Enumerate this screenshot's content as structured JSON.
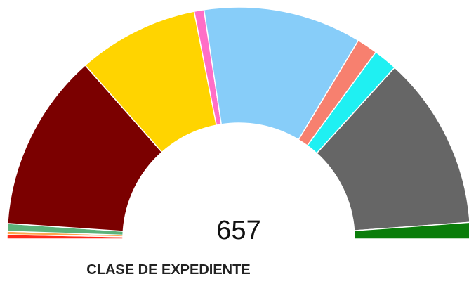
{
  "chart_data": {
    "type": "semi-donut",
    "title": "CLASE DE EXPEDIENTE",
    "total": 657,
    "values": [
      4,
      3,
      7,
      163,
      111,
      9,
      145,
      19,
      22,
      159,
      15
    ],
    "colors": [
      "#ff2a1a",
      "#ffa64d",
      "#5cb27a",
      "#7b0000",
      "#ffd400",
      "#ff6ec7",
      "#87cdf9",
      "#f7806f",
      "#1ff0f2",
      "#666666",
      "#0a7d0a"
    ]
  }
}
